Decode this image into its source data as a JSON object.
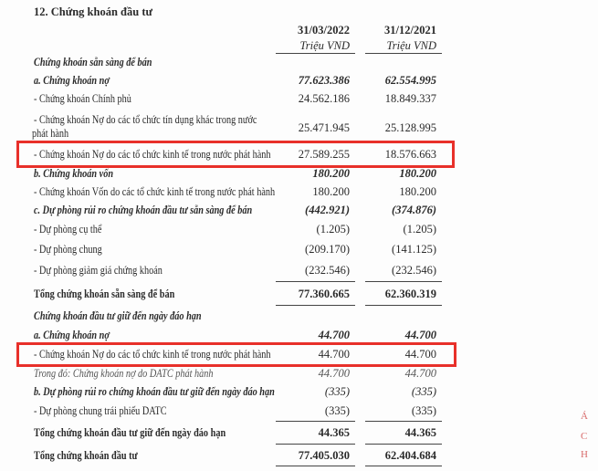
{
  "title": "12. Chứng khoán đầu tư",
  "columns": [
    {
      "date": "31/03/2022",
      "unit": "Triệu VND"
    },
    {
      "date": "31/12/2021",
      "unit": "Triệu VND"
    }
  ],
  "rows": [
    {
      "label": "Chứng khoán sẵn sàng để bán",
      "v1": "",
      "v2": ""
    },
    {
      "label": "a. Chứng khoán nợ",
      "v1": "77.623.386",
      "v2": "62.554.995"
    },
    {
      "label": "- Chứng khoán Chính phủ",
      "v1": "24.562.186",
      "v2": "18.849.337"
    },
    {
      "label": "- Chứng khoán Nợ do các tổ chức tín dụng khác trong nước",
      "label2": "phát hành",
      "v1": "25.471.945",
      "v2": "25.128.995"
    },
    {
      "label": "- Chứng khoán Nợ do các tổ chức kinh tế trong nước phát hành",
      "v1": "27.589.255",
      "v2": "18.576.663"
    },
    {
      "label": "b. Chứng khoán vốn",
      "v1": "180.200",
      "v2": "180.200"
    },
    {
      "label": "- Chứng khoán Vốn do các tổ chức kinh tế trong nước phát hành",
      "v1": "180.200",
      "v2": "180.200"
    },
    {
      "label": "c. Dự phòng rủi ro chứng khoán đầu tư sẵn sàng để bán",
      "v1": "(442.921)",
      "v2": "(374.876)"
    },
    {
      "label": "- Dự phòng cụ thể",
      "v1": "(1.205)",
      "v2": "(1.205)"
    },
    {
      "label": "- Dự phòng chung",
      "v1": "(209.170)",
      "v2": "(141.125)"
    },
    {
      "label": "- Dự phòng giảm giá chứng khoán",
      "v1": "(232.546)",
      "v2": "(232.546)"
    },
    {
      "label": "Tổng chứng khoán sẵn sàng để bán",
      "v1": "77.360.665",
      "v2": "62.360.319"
    },
    {
      "label": "Chứng khoán đầu tư giữ đến ngày đáo hạn",
      "v1": "",
      "v2": ""
    },
    {
      "label": "a. Chứng khoán nợ",
      "v1": "44.700",
      "v2": "44.700"
    },
    {
      "label": "- Chứng khoán Nợ do các tổ chức kinh tế trong nước phát hành",
      "v1": "44.700",
      "v2": "44.700"
    },
    {
      "label": "Trong đó: Chứng khoán nợ do DATC phát hành",
      "v1": "44.700",
      "v2": "44.700"
    },
    {
      "label": "b. Dự phòng rủi ro chứng khoán đầu tư giữ đến ngày đáo hạn",
      "v1": "(335)",
      "v2": "(335)"
    },
    {
      "label": "- Dự phòng chung trái phiếu DATC",
      "v1": "(335)",
      "v2": "(335)"
    },
    {
      "label": "Tổng chứng khoán đầu tư giữ đến ngày đáo hạn",
      "v1": "44.365",
      "v2": "44.365"
    },
    {
      "label": "Tổng chứng khoán đầu tư",
      "v1": "77.405.030",
      "v2": "62.404.684"
    }
  ],
  "highlight_color": "#e8302a",
  "stamp_text": "Á C H"
}
